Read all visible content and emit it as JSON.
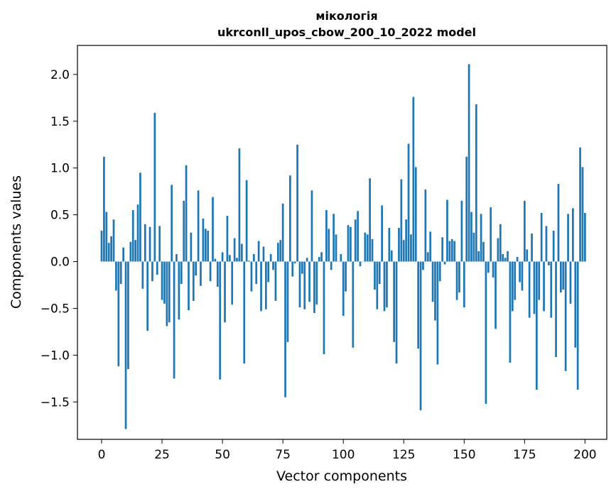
{
  "chart_data": {
    "type": "bar",
    "title": "мікологія",
    "subtitle": "ukrconll_upos_cbow_200_10_2022 model",
    "xlabel": "Vector components",
    "ylabel": "Components values",
    "xlim": [
      -10,
      209
    ],
    "ylim": [
      -1.9,
      2.31
    ],
    "x_ticks": [
      0,
      25,
      50,
      75,
      100,
      125,
      150,
      175,
      200
    ],
    "y_ticks": [
      -1.5,
      -1.0,
      -0.5,
      0.0,
      0.5,
      1.0,
      1.5,
      2.0
    ],
    "y_tick_labels": [
      "−1.5",
      "−1.0",
      "−0.5",
      "0.0",
      "0.5",
      "1.0",
      "1.5",
      "2.0"
    ],
    "grid": false,
    "bar_color": "#1f77b4",
    "values": [
      0.33,
      1.12,
      0.53,
      0.2,
      0.27,
      0.45,
      -0.31,
      -1.12,
      -0.24,
      0.15,
      -1.79,
      -1.15,
      0.21,
      0.55,
      0.23,
      0.61,
      0.95,
      -0.29,
      0.4,
      -0.74,
      0.37,
      -0.21,
      1.59,
      -0.14,
      0.38,
      -0.41,
      -0.45,
      -0.69,
      -0.65,
      0.82,
      -1.25,
      0.08,
      -0.62,
      -0.24,
      0.65,
      1.03,
      -0.52,
      0.31,
      -0.42,
      -0.15,
      0.76,
      -0.26,
      0.46,
      0.35,
      0.33,
      -0.21,
      0.69,
      0.03,
      -0.27,
      -1.26,
      0.1,
      -0.65,
      0.49,
      0.07,
      -0.46,
      0.25,
      0.04,
      1.21,
      0.19,
      -1.09,
      0.87,
      0.01,
      -0.32,
      0.08,
      -0.24,
      0.22,
      -0.53,
      0.16,
      -0.51,
      -0.22,
      0.08,
      -0.09,
      -0.42,
      0.2,
      0.23,
      0.62,
      -1.45,
      -0.86,
      0.92,
      -0.16,
      -0.02,
      1.25,
      -0.49,
      -0.13,
      -0.51,
      0.04,
      -0.43,
      0.76,
      -0.55,
      -0.46,
      0.05,
      0.1,
      -0.99,
      0.55,
      0.35,
      -0.09,
      0.51,
      0.29,
      0.0,
      0.08,
      -0.58,
      -0.32,
      0.39,
      0.37,
      -0.92,
      0.45,
      0.54,
      -0.05,
      0.0,
      0.31,
      0.29,
      0.89,
      0.24,
      -0.3,
      -0.51,
      -0.24,
      0.6,
      -0.53,
      -0.49,
      0.36,
      0.12,
      -0.86,
      -1.09,
      0.36,
      0.88,
      0.23,
      0.45,
      1.26,
      0.29,
      1.76,
      1.01,
      -0.93,
      -1.59,
      -0.09,
      0.77,
      0.1,
      0.32,
      -0.43,
      -0.63,
      -1.1,
      -0.21,
      0.26,
      -0.03,
      0.66,
      0.22,
      0.24,
      0.22,
      -0.41,
      -0.33,
      0.65,
      -0.49,
      1.12,
      2.11,
      0.53,
      0.31,
      1.68,
      0.11,
      0.51,
      0.21,
      -1.52,
      -0.12,
      0.58,
      -0.17,
      -0.72,
      0.25,
      0.4,
      0.08,
      0.04,
      0.11,
      -1.08,
      -0.53,
      -0.41,
      0.05,
      -0.22,
      -0.31,
      0.65,
      0.13,
      -0.6,
      0.3,
      -0.56,
      -1.37,
      -0.41,
      0.52,
      -0.53,
      0.38,
      -0.04,
      -0.6,
      0.33,
      -1.02,
      0.83,
      -0.33,
      -0.3,
      -1.17,
      0.51,
      -0.45,
      0.57,
      -0.92,
      -1.37,
      1.22,
      1.01,
      0.52
    ]
  }
}
